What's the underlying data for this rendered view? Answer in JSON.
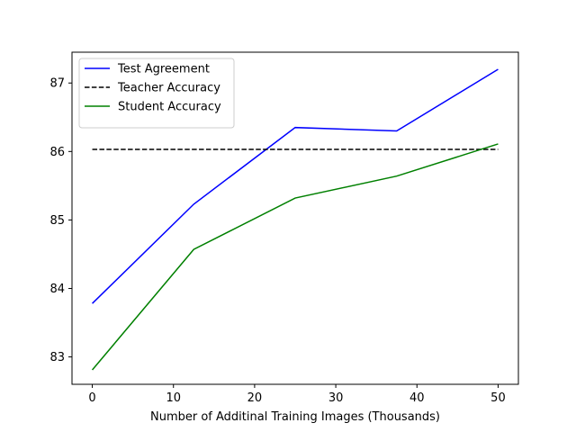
{
  "chart_data": {
    "type": "line",
    "title": "",
    "xlabel": "Number of Additinal Training Images (Thousands)",
    "ylabel": "",
    "xlim": [
      -2.5,
      52.5
    ],
    "ylim": [
      82.6,
      87.45
    ],
    "xticks": [
      0,
      10,
      20,
      30,
      40,
      50
    ],
    "yticks": [
      83,
      84,
      85,
      86,
      87
    ],
    "grid": false,
    "legend_position": "upper-left",
    "series": [
      {
        "name": "Test Agreement",
        "color": "#0000ff",
        "style": "solid",
        "x": [
          0,
          12.5,
          25,
          37.5,
          50
        ],
        "values": [
          83.78,
          85.23,
          86.35,
          86.3,
          87.2
        ]
      },
      {
        "name": "Teacher Accuracy",
        "color": "#000000",
        "style": "dashed",
        "x": [
          0,
          50
        ],
        "values": [
          86.03,
          86.03
        ]
      },
      {
        "name": "Student Accuracy",
        "color": "#008000",
        "style": "solid",
        "x": [
          0,
          12.5,
          25,
          37.5,
          50
        ],
        "values": [
          82.81,
          84.57,
          85.32,
          85.64,
          86.11
        ]
      }
    ]
  }
}
